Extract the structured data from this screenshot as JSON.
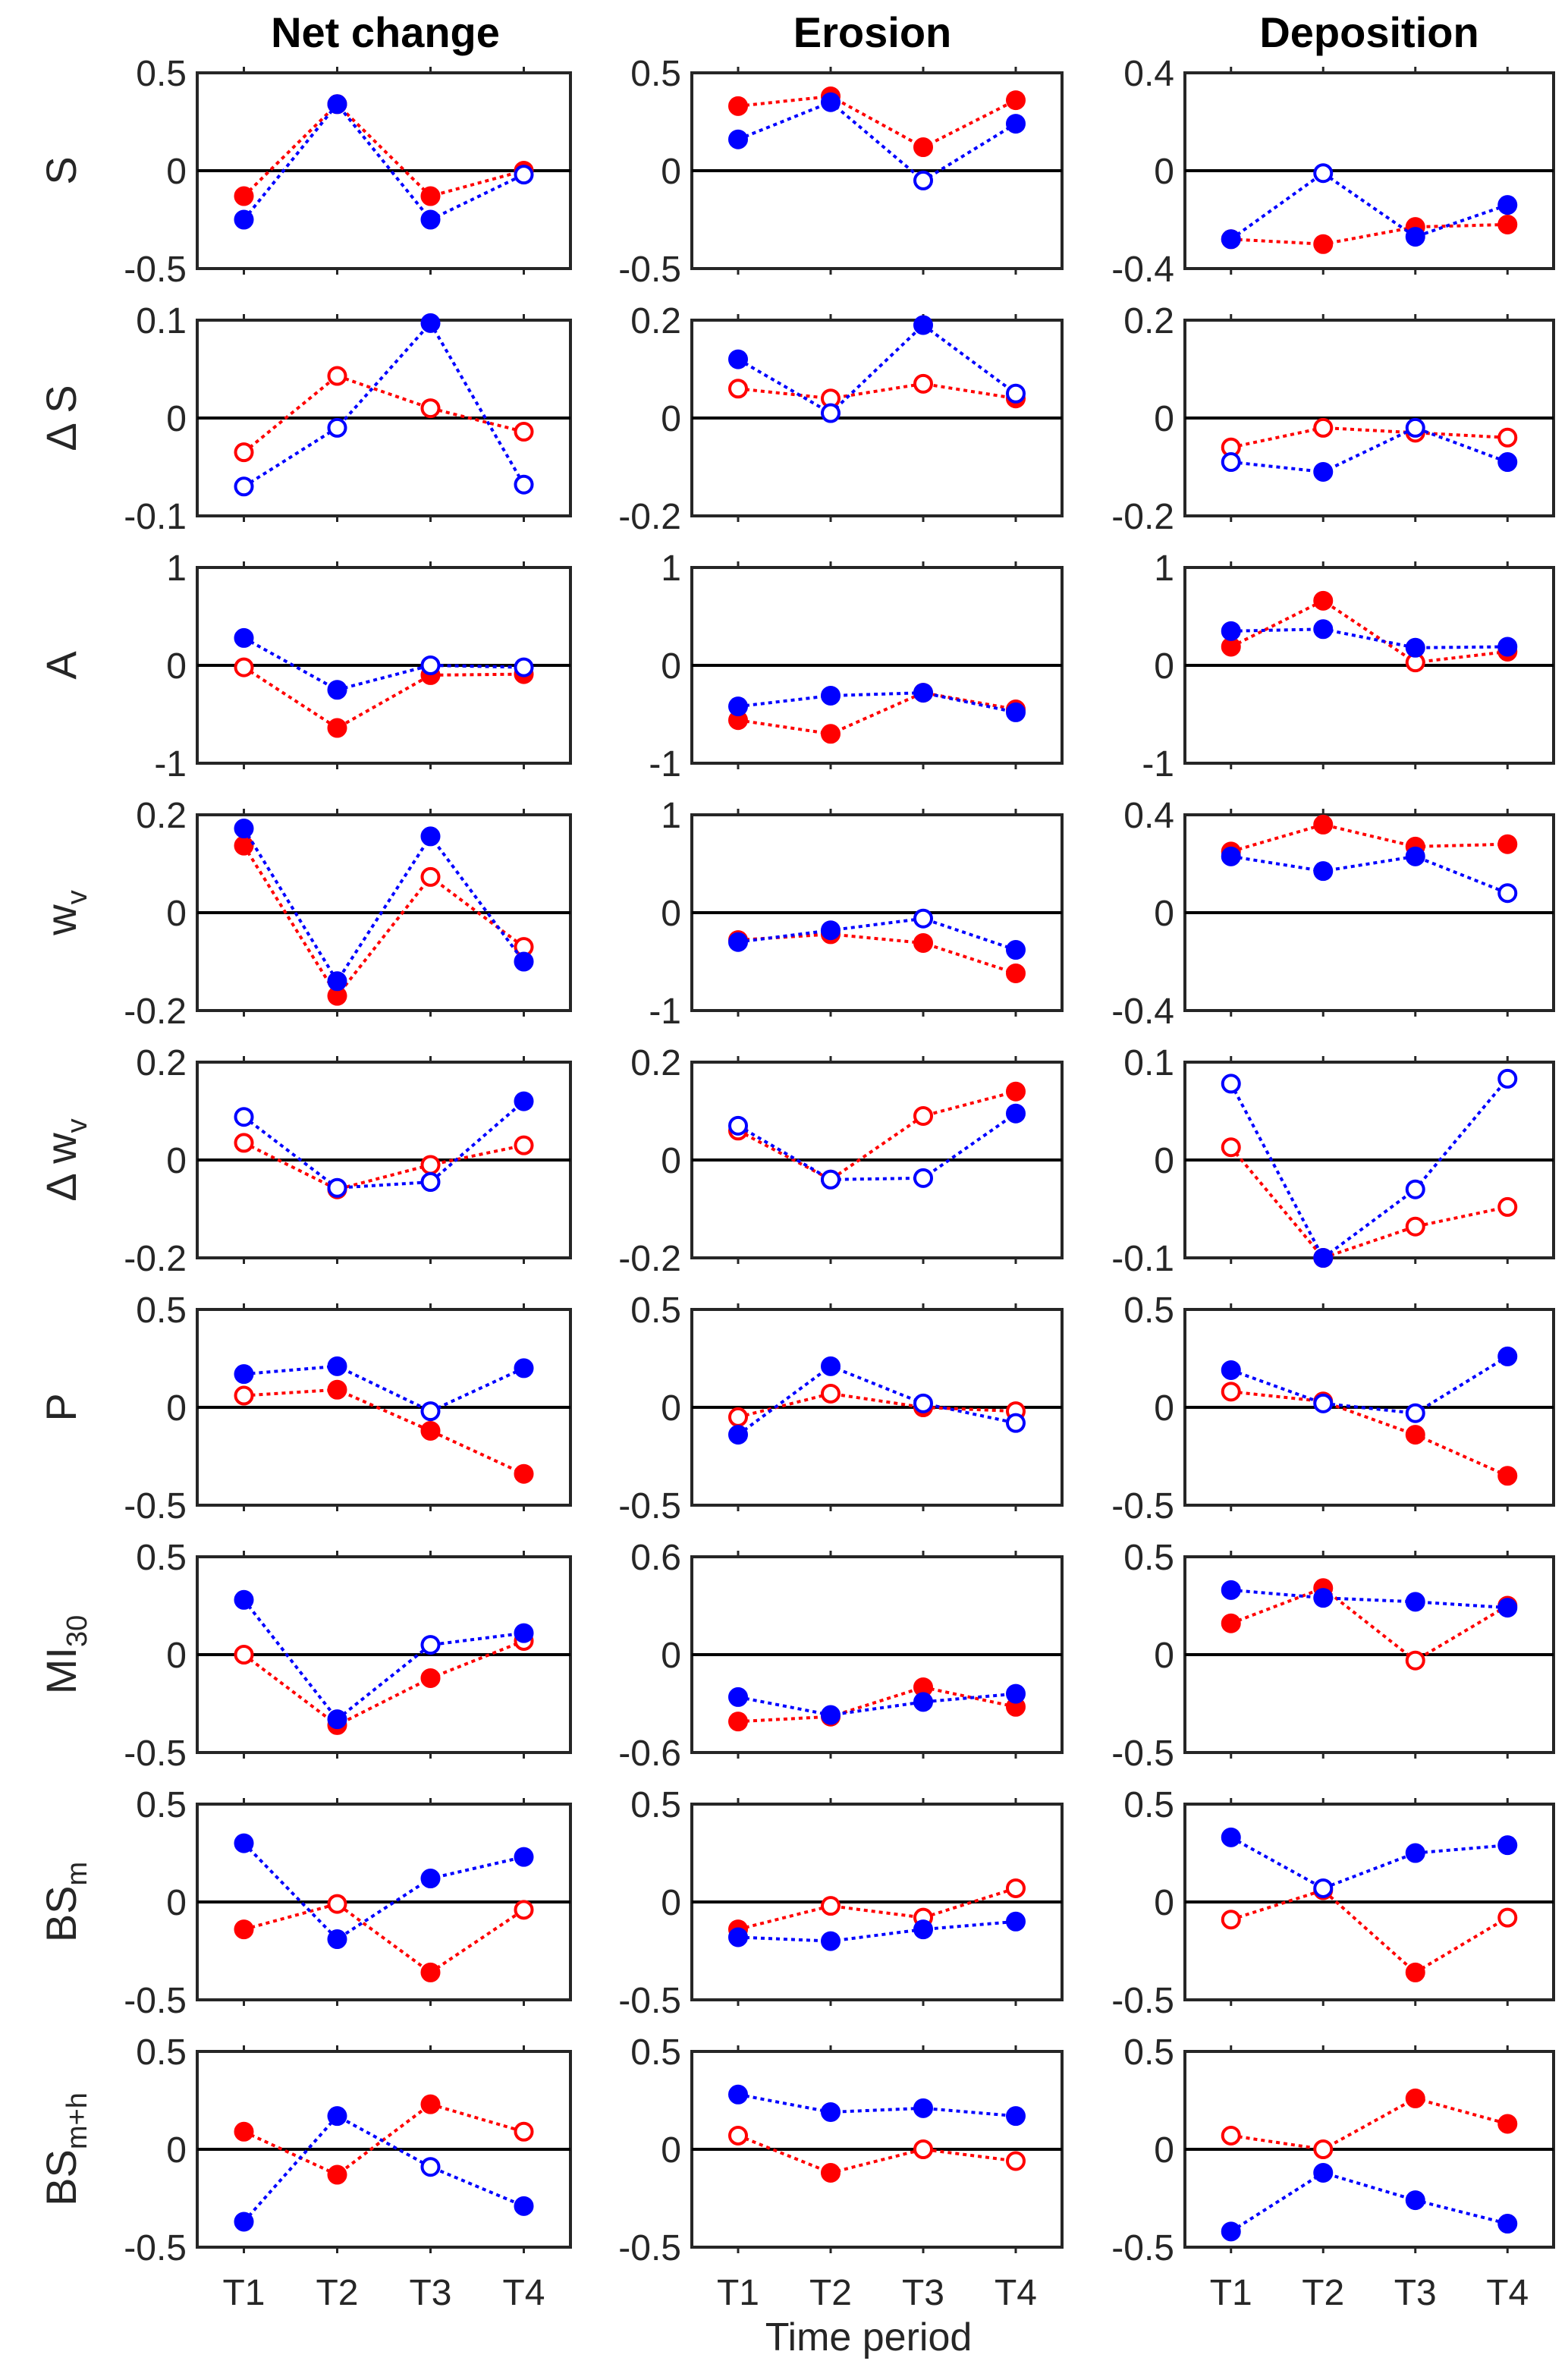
{
  "chart_data": {
    "type": "line",
    "column_titles": [
      "Net change",
      "Erosion",
      "Deposition"
    ],
    "xlabel": "Time period",
    "categories": [
      "T1",
      "T2",
      "T3",
      "T4"
    ],
    "series_colors": {
      "red": "#ff0000",
      "blue": "#0000ff"
    },
    "marker_legend": {
      "filled": "filled marker",
      "open": "open marker"
    },
    "rows": [
      {
        "ylabel": "S",
        "ylabel_sub": "",
        "ylabel_prefix": "",
        "panels": [
          {
            "ylim": [
              -0.5,
              0.5
            ],
            "ticks": [
              "0.5",
              "0",
              "-0.5"
            ],
            "red": [
              -0.13,
              0.34,
              -0.13,
              0.0
            ],
            "red_filled": [
              true,
              true,
              true,
              true
            ],
            "blue": [
              -0.25,
              0.34,
              -0.25,
              -0.02
            ],
            "blue_filled": [
              true,
              true,
              true,
              false
            ]
          },
          {
            "ylim": [
              -0.5,
              0.5
            ],
            "ticks": [
              "0.5",
              "0",
              "-0.5"
            ],
            "red": [
              0.33,
              0.38,
              0.12,
              0.36
            ],
            "red_filled": [
              true,
              true,
              true,
              true
            ],
            "blue": [
              0.16,
              0.35,
              -0.05,
              0.24
            ],
            "blue_filled": [
              true,
              true,
              false,
              true
            ]
          },
          {
            "ylim": [
              -0.4,
              0.4
            ],
            "ticks": [
              "0.4",
              "0",
              "-0.4"
            ],
            "red": [
              -0.28,
              -0.3,
              -0.23,
              -0.22
            ],
            "red_filled": [
              true,
              true,
              true,
              true
            ],
            "blue": [
              -0.28,
              -0.01,
              -0.27,
              -0.14
            ],
            "blue_filled": [
              true,
              false,
              true,
              true
            ]
          }
        ]
      },
      {
        "ylabel": "S",
        "ylabel_sub": "",
        "ylabel_prefix": "Δ",
        "panels": [
          {
            "ylim": [
              -0.1,
              0.1
            ],
            "ticks": [
              "0.1",
              "0",
              "-0.1"
            ],
            "red": [
              -0.035,
              0.043,
              0.01,
              -0.014
            ],
            "red_filled": [
              false,
              false,
              false,
              false
            ],
            "blue": [
              -0.07,
              -0.01,
              0.097,
              -0.068
            ],
            "blue_filled": [
              false,
              false,
              true,
              false
            ]
          },
          {
            "ylim": [
              -0.2,
              0.2
            ],
            "ticks": [
              "0.2",
              "0",
              "-0.2"
            ],
            "red": [
              0.06,
              0.04,
              0.07,
              0.04
            ],
            "red_filled": [
              false,
              false,
              false,
              true
            ],
            "blue": [
              0.12,
              0.01,
              0.19,
              0.05
            ],
            "blue_filled": [
              true,
              false,
              true,
              false
            ]
          },
          {
            "ylim": [
              -0.2,
              0.2
            ],
            "ticks": [
              "0.2",
              "0",
              "-0.2"
            ],
            "red": [
              -0.06,
              -0.02,
              -0.03,
              -0.04
            ],
            "red_filled": [
              false,
              false,
              false,
              false
            ],
            "blue": [
              -0.09,
              -0.11,
              -0.02,
              -0.09
            ],
            "blue_filled": [
              false,
              true,
              false,
              true
            ]
          }
        ]
      },
      {
        "ylabel": "A",
        "ylabel_sub": "",
        "ylabel_prefix": "",
        "panels": [
          {
            "ylim": [
              -1,
              1
            ],
            "ticks": [
              "1",
              "0",
              "-1"
            ],
            "red": [
              -0.02,
              -0.64,
              -0.1,
              -0.09
            ],
            "red_filled": [
              false,
              true,
              true,
              true
            ],
            "blue": [
              0.28,
              -0.25,
              0.0,
              -0.02
            ],
            "blue_filled": [
              true,
              true,
              false,
              false
            ]
          },
          {
            "ylim": [
              -1,
              1
            ],
            "ticks": [
              "1",
              "0",
              "-1"
            ],
            "red": [
              -0.56,
              -0.7,
              -0.28,
              -0.45
            ],
            "red_filled": [
              true,
              true,
              true,
              true
            ],
            "blue": [
              -0.42,
              -0.31,
              -0.28,
              -0.48
            ],
            "blue_filled": [
              true,
              true,
              true,
              true
            ]
          },
          {
            "ylim": [
              -1,
              1
            ],
            "ticks": [
              "1",
              "0",
              "-1"
            ],
            "red": [
              0.19,
              0.66,
              0.03,
              0.14
            ],
            "red_filled": [
              true,
              true,
              false,
              true
            ],
            "blue": [
              0.35,
              0.37,
              0.18,
              0.19
            ],
            "blue_filled": [
              true,
              true,
              true,
              true
            ]
          }
        ]
      },
      {
        "ylabel": "w",
        "ylabel_sub": "v",
        "ylabel_prefix": "",
        "panels": [
          {
            "ylim": [
              -0.2,
              0.2
            ],
            "ticks": [
              "0.2",
              "0",
              "-0.2"
            ],
            "red": [
              0.137,
              -0.17,
              0.073,
              -0.07
            ],
            "red_filled": [
              true,
              true,
              false,
              false
            ],
            "blue": [
              0.172,
              -0.14,
              0.156,
              -0.1
            ],
            "blue_filled": [
              true,
              true,
              true,
              true
            ]
          },
          {
            "ylim": [
              -1,
              1
            ],
            "ticks": [
              "1",
              "0",
              "-1"
            ],
            "red": [
              -0.28,
              -0.22,
              -0.31,
              -0.62
            ],
            "red_filled": [
              true,
              true,
              true,
              true
            ],
            "blue": [
              -0.3,
              -0.18,
              -0.06,
              -0.38
            ],
            "blue_filled": [
              true,
              true,
              false,
              true
            ]
          },
          {
            "ylim": [
              -0.4,
              0.4
            ],
            "ticks": [
              "0.4",
              "0",
              "-0.4"
            ],
            "red": [
              0.25,
              0.36,
              0.27,
              0.28
            ],
            "red_filled": [
              true,
              true,
              true,
              true
            ],
            "blue": [
              0.23,
              0.17,
              0.23,
              0.08
            ],
            "blue_filled": [
              true,
              true,
              true,
              false
            ]
          }
        ]
      },
      {
        "ylabel": "w",
        "ylabel_sub": "v",
        "ylabel_prefix": "Δ",
        "panels": [
          {
            "ylim": [
              -0.2,
              0.2
            ],
            "ticks": [
              "0.2",
              "0",
              "-0.2"
            ],
            "red": [
              0.035,
              -0.06,
              -0.01,
              0.03
            ],
            "red_filled": [
              false,
              true,
              false,
              false
            ],
            "blue": [
              0.088,
              -0.057,
              -0.045,
              0.12
            ],
            "blue_filled": [
              false,
              false,
              false,
              true
            ]
          },
          {
            "ylim": [
              -0.2,
              0.2
            ],
            "ticks": [
              "0.2",
              "0",
              "-0.2"
            ],
            "red": [
              0.06,
              -0.04,
              0.09,
              0.14
            ],
            "red_filled": [
              false,
              false,
              false,
              true
            ],
            "blue": [
              0.07,
              -0.04,
              -0.037,
              0.095
            ],
            "blue_filled": [
              false,
              false,
              false,
              true
            ]
          },
          {
            "ylim": [
              -0.1,
              0.1
            ],
            "ticks": [
              "0.1",
              "0",
              "-0.1"
            ],
            "red": [
              0.013,
              -0.1,
              -0.068,
              -0.048
            ],
            "red_filled": [
              false,
              true,
              false,
              false
            ],
            "blue": [
              0.078,
              -0.1,
              -0.03,
              0.083
            ],
            "blue_filled": [
              false,
              true,
              false,
              false
            ]
          }
        ]
      },
      {
        "ylabel": "P",
        "ylabel_sub": "",
        "ylabel_prefix": "",
        "panels": [
          {
            "ylim": [
              -0.5,
              0.5
            ],
            "ticks": [
              "0.5",
              "0",
              "-0.5"
            ],
            "red": [
              0.06,
              0.09,
              -0.12,
              -0.34
            ],
            "red_filled": [
              false,
              true,
              true,
              true
            ],
            "blue": [
              0.17,
              0.21,
              -0.02,
              0.2
            ],
            "blue_filled": [
              true,
              true,
              false,
              true
            ]
          },
          {
            "ylim": [
              -0.5,
              0.5
            ],
            "ticks": [
              "0.5",
              "0",
              "-0.5"
            ],
            "red": [
              -0.05,
              0.07,
              0.0,
              -0.02
            ],
            "red_filled": [
              false,
              false,
              true,
              false
            ],
            "blue": [
              -0.14,
              0.21,
              0.02,
              -0.08
            ],
            "blue_filled": [
              true,
              true,
              false,
              false
            ]
          },
          {
            "ylim": [
              -0.5,
              0.5
            ],
            "ticks": [
              "0.5",
              "0",
              "-0.5"
            ],
            "red": [
              0.08,
              0.03,
              -0.14,
              -0.35
            ],
            "red_filled": [
              false,
              false,
              true,
              true
            ],
            "blue": [
              0.19,
              0.02,
              -0.03,
              0.26
            ],
            "blue_filled": [
              true,
              false,
              false,
              true
            ]
          }
        ]
      },
      {
        "ylabel": "MI",
        "ylabel_sub": "30",
        "ylabel_prefix": "",
        "panels": [
          {
            "ylim": [
              -0.5,
              0.5
            ],
            "ticks": [
              "0.5",
              "0",
              "-0.5"
            ],
            "red": [
              0.0,
              -0.36,
              -0.12,
              0.07
            ],
            "red_filled": [
              false,
              true,
              true,
              false
            ],
            "blue": [
              0.28,
              -0.33,
              0.05,
              0.11
            ],
            "blue_filled": [
              true,
              true,
              false,
              true
            ]
          },
          {
            "ylim": [
              -0.6,
              0.6
            ],
            "ticks": [
              "0.6",
              "0",
              "-0.6"
            ],
            "red": [
              -0.41,
              -0.38,
              -0.2,
              -0.32
            ],
            "red_filled": [
              true,
              true,
              true,
              true
            ],
            "blue": [
              -0.26,
              -0.37,
              -0.29,
              -0.24
            ],
            "blue_filled": [
              true,
              true,
              true,
              true
            ]
          },
          {
            "ylim": [
              -0.5,
              0.5
            ],
            "ticks": [
              "0.5",
              "0",
              "-0.5"
            ],
            "red": [
              0.16,
              0.34,
              -0.03,
              0.25
            ],
            "red_filled": [
              true,
              true,
              false,
              true
            ],
            "blue": [
              0.33,
              0.29,
              0.27,
              0.24
            ],
            "blue_filled": [
              true,
              true,
              true,
              true
            ]
          }
        ]
      },
      {
        "ylabel": "BS",
        "ylabel_sub": "m",
        "ylabel_prefix": "",
        "panels": [
          {
            "ylim": [
              -0.5,
              0.5
            ],
            "ticks": [
              "0.5",
              "0",
              "-0.5"
            ],
            "red": [
              -0.14,
              -0.01,
              -0.36,
              -0.04
            ],
            "red_filled": [
              true,
              false,
              true,
              false
            ],
            "blue": [
              0.3,
              -0.19,
              0.12,
              0.23
            ],
            "blue_filled": [
              true,
              true,
              true,
              true
            ]
          },
          {
            "ylim": [
              -0.5,
              0.5
            ],
            "ticks": [
              "0.5",
              "0",
              "-0.5"
            ],
            "red": [
              -0.14,
              -0.02,
              -0.08,
              0.07
            ],
            "red_filled": [
              true,
              false,
              false,
              false
            ],
            "blue": [
              -0.18,
              -0.2,
              -0.14,
              -0.1
            ],
            "blue_filled": [
              true,
              true,
              true,
              true
            ]
          },
          {
            "ylim": [
              -0.5,
              0.5
            ],
            "ticks": [
              "0.5",
              "0",
              "-0.5"
            ],
            "red": [
              -0.09,
              0.06,
              -0.36,
              -0.08
            ],
            "red_filled": [
              false,
              false,
              true,
              false
            ],
            "blue": [
              0.33,
              0.07,
              0.25,
              0.29
            ],
            "blue_filled": [
              true,
              false,
              true,
              true
            ]
          }
        ]
      },
      {
        "ylabel": "BS",
        "ylabel_sub": "m+h",
        "ylabel_prefix": "",
        "panels": [
          {
            "ylim": [
              -0.5,
              0.5
            ],
            "ticks": [
              "0.5",
              "0",
              "-0.5"
            ],
            "red": [
              0.09,
              -0.13,
              0.23,
              0.09
            ],
            "red_filled": [
              true,
              true,
              true,
              false
            ],
            "blue": [
              -0.37,
              0.17,
              -0.09,
              -0.29
            ],
            "blue_filled": [
              true,
              true,
              false,
              true
            ]
          },
          {
            "ylim": [
              -0.5,
              0.5
            ],
            "ticks": [
              "0.5",
              "0",
              "-0.5"
            ],
            "red": [
              0.07,
              -0.12,
              0.0,
              -0.06
            ],
            "red_filled": [
              false,
              true,
              false,
              false
            ],
            "blue": [
              0.28,
              0.19,
              0.21,
              0.17
            ],
            "blue_filled": [
              true,
              true,
              true,
              true
            ]
          },
          {
            "ylim": [
              -0.5,
              0.5
            ],
            "ticks": [
              "0.5",
              "0",
              "-0.5"
            ],
            "red": [
              0.07,
              0.0,
              0.26,
              0.13
            ],
            "red_filled": [
              false,
              false,
              true,
              true
            ],
            "blue": [
              -0.42,
              -0.12,
              -0.26,
              -0.38
            ],
            "blue_filled": [
              true,
              true,
              true,
              true
            ]
          }
        ]
      }
    ]
  }
}
